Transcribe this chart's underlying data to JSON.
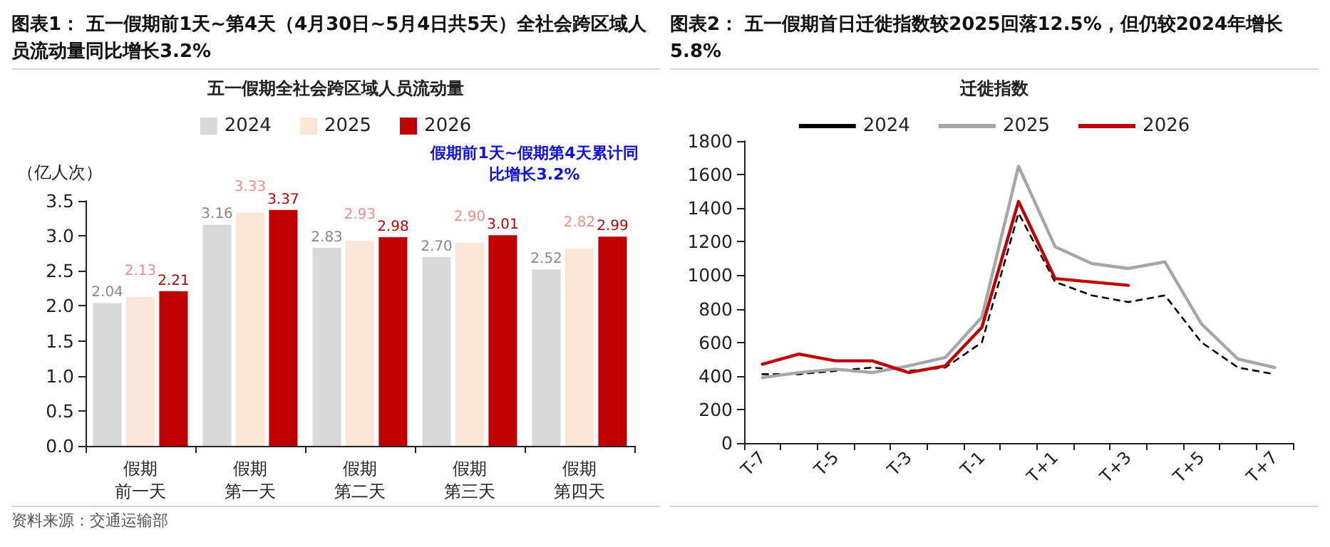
{
  "chart_data": [
    {
      "type": "bar",
      "title": "图表1： 五一假期前1天~第4天（4月30日~5月4日共5天）全社会跨区域人员流动量同比增长3.2%",
      "subtitle": "五一假期全社会跨区域人员流动量",
      "ylabel": "（亿人次）",
      "categories": [
        "假期前一天",
        "假期第一天",
        "假期第二天",
        "假期第三天",
        "假期第四天"
      ],
      "series": [
        {
          "name": "2024",
          "color": "#d9d9d9",
          "values": [
            2.04,
            3.16,
            2.83,
            2.7,
            2.52
          ],
          "value_labels": [
            "2.04",
            "3.16",
            "2.83",
            "2.70",
            "2.52"
          ]
        },
        {
          "name": "2025",
          "color": "#fbe5d6",
          "values": [
            2.13,
            3.33,
            2.93,
            2.9,
            2.82
          ],
          "value_labels": [
            "2.13",
            "3.33",
            "2.93",
            "2.90",
            "2.82"
          ]
        },
        {
          "name": "2026",
          "color": "#c00000",
          "values": [
            2.21,
            3.37,
            2.98,
            3.01,
            2.99
          ],
          "value_labels": [
            "2.21",
            "3.37",
            "2.98",
            "3.01",
            "2.99"
          ]
        }
      ],
      "ylim": [
        0,
        3.5
      ],
      "yticks": [
        {
          "value": 0,
          "label": "0.0"
        },
        0.5,
        {
          "value": 1,
          "label": "1.0"
        },
        1.5,
        {
          "value": 2,
          "label": "2.0"
        },
        2.5,
        {
          "value": 3,
          "label": "3.0"
        },
        3.5
      ],
      "grid": false,
      "legend": "top",
      "annotations": [
        "假期前1天~假期第4天累计同比增长3.2%",
        "资料来源：交通运输部"
      ]
    },
    {
      "type": "line",
      "title": "图表2： 五一假期首日迁徙指数较2025回落12.5%，但仍较2024年增长5.8%",
      "subtitle": "迁徙指数",
      "categories": [
        "T-7",
        null,
        "T-5",
        null,
        "T-3",
        null,
        "T-1",
        null,
        "T+1",
        null,
        "T+3",
        null,
        "T+5",
        null,
        "T+7"
      ],
      "series": [
        {
          "name": "2024",
          "color": "#000000",
          "line_style": "dashed",
          "values": [
            410,
            410,
            430,
            450,
            430,
            450,
            600,
            1370,
            960,
            880,
            840,
            880,
            600,
            450,
            410
          ]
        },
        {
          "name": "2025",
          "color": "#a6a6a6",
          "values": [
            390,
            420,
            440,
            420,
            460,
            510,
            750,
            1650,
            1170,
            1070,
            1040,
            1080,
            710,
            500,
            450
          ]
        },
        {
          "name": "2026",
          "color": "#c00000",
          "values": [
            470,
            530,
            490,
            490,
            420,
            460,
            690,
            1440,
            980,
            960,
            940,
            null,
            null,
            null,
            null
          ]
        }
      ],
      "ylim": [
        0,
        1800
      ],
      "yticks": [
        0,
        200,
        400,
        600,
        800,
        1000,
        1200,
        1400,
        1600,
        1800
      ],
      "grid": false,
      "legend": "top",
      "marker": "none"
    }
  ]
}
